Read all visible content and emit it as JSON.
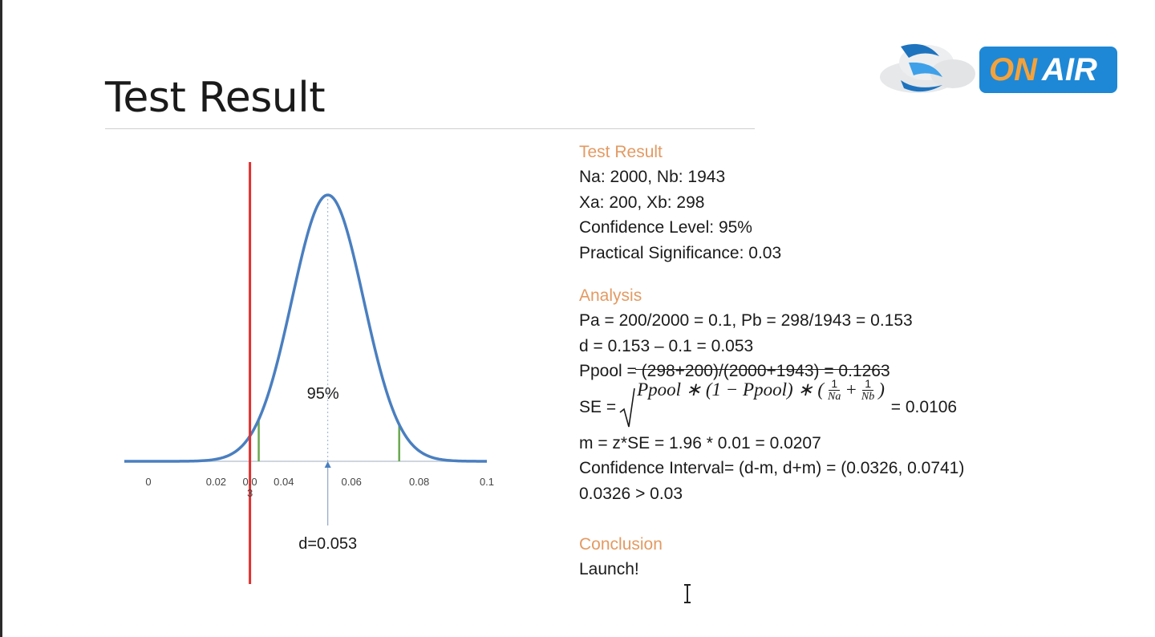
{
  "slide": {
    "title": "Test Result"
  },
  "logo": {
    "text_on": "ON",
    "text_air": "AIR",
    "colors": {
      "badge": "#1e88d6",
      "on": "#f5a23a",
      "air": "#ffffff",
      "swirl": "#1e73be"
    }
  },
  "panel": {
    "test_result": {
      "heading": "Test Result",
      "lines": [
        "Na: 2000, Nb: 1943",
        "Xa: 200, Xb: 298",
        "Confidence Level: 95%",
        "Practical Significance: 0.03"
      ]
    },
    "analysis": {
      "heading": "Analysis",
      "lines_before": [
        "Pa = 200/2000 = 0.1, Pb = 298/1943 = 0.153",
        "d = 0.153 – 0.1 = 0.053",
        "Ppool = (298+200)/(2000+1943) = 0.1263"
      ],
      "se": {
        "prefix": "SE = ",
        "expr": "Ppool ∗ (1 − Ppool) ∗ (",
        "frac1_num": "1",
        "frac1_den": "Na",
        "plus": "+",
        "frac2_num": "1",
        "frac2_den": "Nb",
        "close": ")",
        "suffix": " = 0.0106"
      },
      "lines_after": [
        "m = z*SE = 1.96 * 0.01 = 0.0207",
        "Confidence Interval= (d-m, d+m) = (0.0326, 0.0741)",
        "0.0326 > 0.03"
      ]
    },
    "conclusion": {
      "heading": "Conclusion",
      "text": "Launch!"
    },
    "colors": {
      "heading": "#e39a62",
      "text": "#1a1a1a"
    }
  },
  "chart_data": {
    "type": "line",
    "title": "",
    "xlabel": "",
    "ylabel": "",
    "xlim": [
      0,
      0.1
    ],
    "x_ticks": [
      0,
      0.02,
      0.03,
      0.04,
      0.06,
      0.08,
      0.1
    ],
    "x_tick_labels": [
      "0",
      "0.02",
      "0.0\n3",
      "0.04",
      "0.06",
      "0.08",
      "0.1"
    ],
    "distribution": {
      "shape": "normal",
      "mean": 0.053,
      "sd": 0.0106
    },
    "confidence_interval": [
      0.0326,
      0.0741
    ],
    "practical_significance_line": 0.03,
    "mean_marker": 0.053,
    "annotations": {
      "area_label": "95%",
      "mean_label": "d=0.053"
    },
    "grid": false,
    "colors": {
      "curve": "#4a7fc0",
      "ci_lines": "#6aa84f",
      "threshold": "#e03030",
      "mean_dashed": "#8fb0d8",
      "axis": "#999999"
    }
  }
}
